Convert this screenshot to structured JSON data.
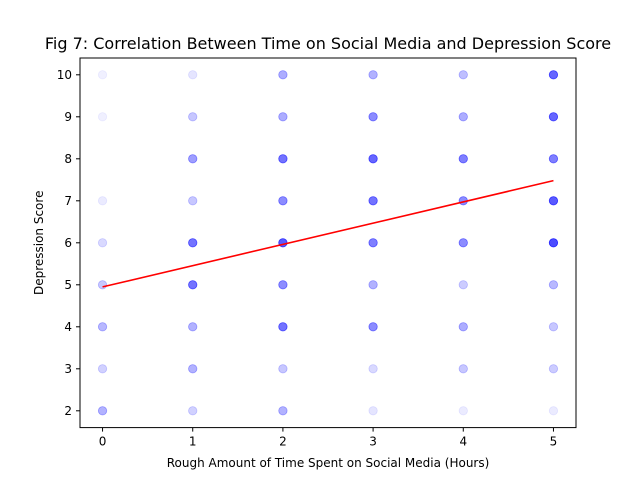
{
  "chart_data": {
    "type": "scatter",
    "title": "Fig 7: Correlation Between Time on Social Media and Depression Score",
    "xlabel": "Rough Amount of Time Spent on Social Media (Hours)",
    "ylabel": "Depression Score",
    "xlim": [
      -0.25,
      5.25
    ],
    "ylim": [
      1.6,
      10.4
    ],
    "xticks": [
      0,
      1,
      2,
      3,
      4,
      5
    ],
    "yticks": [
      2,
      3,
      4,
      5,
      6,
      7,
      8,
      9,
      10
    ],
    "grid": false,
    "point_color": "#0000ff",
    "line_color": "#ff0000",
    "series": [
      {
        "type": "scatter",
        "points": [
          {
            "x": 0,
            "y": 10,
            "opacity": 0.06
          },
          {
            "x": 0,
            "y": 9,
            "opacity": 0.06
          },
          {
            "x": 0,
            "y": 7,
            "opacity": 0.08
          },
          {
            "x": 0,
            "y": 6,
            "opacity": 0.15
          },
          {
            "x": 0,
            "y": 5,
            "opacity": 0.22
          },
          {
            "x": 0,
            "y": 4,
            "opacity": 0.28
          },
          {
            "x": 0,
            "y": 3,
            "opacity": 0.18
          },
          {
            "x": 0,
            "y": 2,
            "opacity": 0.3
          },
          {
            "x": 1,
            "y": 10,
            "opacity": 0.1
          },
          {
            "x": 1,
            "y": 9,
            "opacity": 0.22
          },
          {
            "x": 1,
            "y": 8,
            "opacity": 0.38
          },
          {
            "x": 1,
            "y": 7,
            "opacity": 0.22
          },
          {
            "x": 1,
            "y": 6,
            "opacity": 0.55
          },
          {
            "x": 1,
            "y": 5,
            "opacity": 0.55
          },
          {
            "x": 1,
            "y": 4,
            "opacity": 0.3
          },
          {
            "x": 1,
            "y": 3,
            "opacity": 0.3
          },
          {
            "x": 1,
            "y": 2,
            "opacity": 0.18
          },
          {
            "x": 2,
            "y": 10,
            "opacity": 0.32
          },
          {
            "x": 2,
            "y": 9,
            "opacity": 0.32
          },
          {
            "x": 2,
            "y": 8,
            "opacity": 0.55
          },
          {
            "x": 2,
            "y": 7,
            "opacity": 0.45
          },
          {
            "x": 2,
            "y": 6,
            "opacity": 0.65
          },
          {
            "x": 2,
            "y": 5,
            "opacity": 0.45
          },
          {
            "x": 2,
            "y": 4,
            "opacity": 0.55
          },
          {
            "x": 2,
            "y": 3,
            "opacity": 0.22
          },
          {
            "x": 2,
            "y": 2,
            "opacity": 0.3
          },
          {
            "x": 3,
            "y": 10,
            "opacity": 0.3
          },
          {
            "x": 3,
            "y": 9,
            "opacity": 0.45
          },
          {
            "x": 3,
            "y": 8,
            "opacity": 0.6
          },
          {
            "x": 3,
            "y": 7,
            "opacity": 0.55
          },
          {
            "x": 3,
            "y": 6,
            "opacity": 0.5
          },
          {
            "x": 3,
            "y": 5,
            "opacity": 0.3
          },
          {
            "x": 3,
            "y": 4,
            "opacity": 0.45
          },
          {
            "x": 3,
            "y": 3,
            "opacity": 0.15
          },
          {
            "x": 3,
            "y": 2,
            "opacity": 0.1
          },
          {
            "x": 4,
            "y": 10,
            "opacity": 0.25
          },
          {
            "x": 4,
            "y": 9,
            "opacity": 0.32
          },
          {
            "x": 4,
            "y": 8,
            "opacity": 0.5
          },
          {
            "x": 4,
            "y": 7,
            "opacity": 0.45
          },
          {
            "x": 4,
            "y": 6,
            "opacity": 0.45
          },
          {
            "x": 4,
            "y": 5,
            "opacity": 0.2
          },
          {
            "x": 4,
            "y": 4,
            "opacity": 0.32
          },
          {
            "x": 4,
            "y": 3,
            "opacity": 0.22
          },
          {
            "x": 4,
            "y": 2,
            "opacity": 0.08
          },
          {
            "x": 5,
            "y": 10,
            "opacity": 0.6
          },
          {
            "x": 5,
            "y": 9,
            "opacity": 0.6
          },
          {
            "x": 5,
            "y": 8,
            "opacity": 0.5
          },
          {
            "x": 5,
            "y": 7,
            "opacity": 0.65
          },
          {
            "x": 5,
            "y": 6,
            "opacity": 0.7
          },
          {
            "x": 5,
            "y": 5,
            "opacity": 0.28
          },
          {
            "x": 5,
            "y": 4,
            "opacity": 0.22
          },
          {
            "x": 5,
            "y": 3,
            "opacity": 0.2
          },
          {
            "x": 5,
            "y": 2,
            "opacity": 0.08
          }
        ]
      },
      {
        "type": "line",
        "x": [
          0,
          5
        ],
        "y": [
          4.95,
          7.48
        ]
      }
    ]
  }
}
